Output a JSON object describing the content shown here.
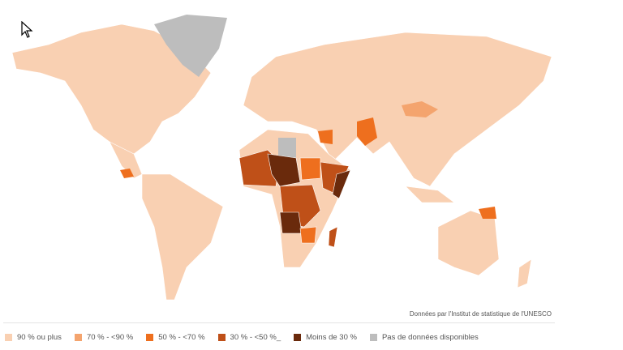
{
  "attribution": "Données par l'Institut de statistique de l'UNESCO",
  "legend": [
    {
      "label": "90 % ou plus",
      "color": "#f9d0b2"
    },
    {
      "label": "70 % - <90 %",
      "color": "#f4a46e"
    },
    {
      "label": "50 % - <70 %",
      "color": "#ee6f1e"
    },
    {
      "label": "30 % - <50 %_",
      "color": "#bf5018"
    },
    {
      "label": "Moins de 30 %",
      "color": "#6a2a0c"
    },
    {
      "label": "Pas de données disponibles",
      "color": "#bdbdbd"
    }
  ]
}
